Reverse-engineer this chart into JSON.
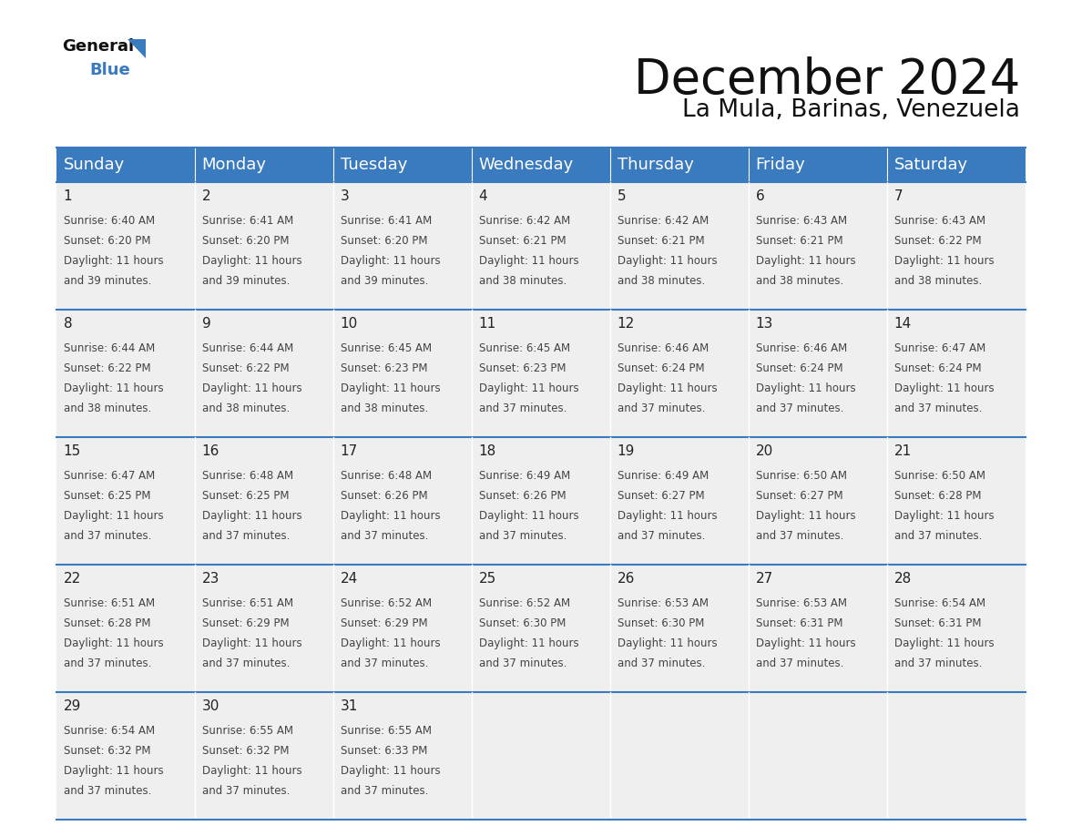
{
  "title": "December 2024",
  "subtitle": "La Mula, Barinas, Venezuela",
  "header_color": "#3a7abf",
  "header_text_color": "#ffffff",
  "cell_bg_color": "#efefef",
  "border_color": "#3a7abf",
  "days_of_week": [
    "Sunday",
    "Monday",
    "Tuesday",
    "Wednesday",
    "Thursday",
    "Friday",
    "Saturday"
  ],
  "title_fontsize": 38,
  "subtitle_fontsize": 19,
  "day_header_fontsize": 13,
  "cell_date_fontsize": 11,
  "cell_text_fontsize": 8.5,
  "logo_general_fontsize": 13,
  "logo_blue_fontsize": 13,
  "calendar_data": [
    [
      {
        "day": 1,
        "sunrise": "6:40 AM",
        "sunset": "6:20 PM",
        "daylight": "11 hours and 39 minutes"
      },
      {
        "day": 2,
        "sunrise": "6:41 AM",
        "sunset": "6:20 PM",
        "daylight": "11 hours and 39 minutes"
      },
      {
        "day": 3,
        "sunrise": "6:41 AM",
        "sunset": "6:20 PM",
        "daylight": "11 hours and 39 minutes"
      },
      {
        "day": 4,
        "sunrise": "6:42 AM",
        "sunset": "6:21 PM",
        "daylight": "11 hours and 38 minutes"
      },
      {
        "day": 5,
        "sunrise": "6:42 AM",
        "sunset": "6:21 PM",
        "daylight": "11 hours and 38 minutes"
      },
      {
        "day": 6,
        "sunrise": "6:43 AM",
        "sunset": "6:21 PM",
        "daylight": "11 hours and 38 minutes"
      },
      {
        "day": 7,
        "sunrise": "6:43 AM",
        "sunset": "6:22 PM",
        "daylight": "11 hours and 38 minutes"
      }
    ],
    [
      {
        "day": 8,
        "sunrise": "6:44 AM",
        "sunset": "6:22 PM",
        "daylight": "11 hours and 38 minutes"
      },
      {
        "day": 9,
        "sunrise": "6:44 AM",
        "sunset": "6:22 PM",
        "daylight": "11 hours and 38 minutes"
      },
      {
        "day": 10,
        "sunrise": "6:45 AM",
        "sunset": "6:23 PM",
        "daylight": "11 hours and 38 minutes"
      },
      {
        "day": 11,
        "sunrise": "6:45 AM",
        "sunset": "6:23 PM",
        "daylight": "11 hours and 37 minutes"
      },
      {
        "day": 12,
        "sunrise": "6:46 AM",
        "sunset": "6:24 PM",
        "daylight": "11 hours and 37 minutes"
      },
      {
        "day": 13,
        "sunrise": "6:46 AM",
        "sunset": "6:24 PM",
        "daylight": "11 hours and 37 minutes"
      },
      {
        "day": 14,
        "sunrise": "6:47 AM",
        "sunset": "6:24 PM",
        "daylight": "11 hours and 37 minutes"
      }
    ],
    [
      {
        "day": 15,
        "sunrise": "6:47 AM",
        "sunset": "6:25 PM",
        "daylight": "11 hours and 37 minutes"
      },
      {
        "day": 16,
        "sunrise": "6:48 AM",
        "sunset": "6:25 PM",
        "daylight": "11 hours and 37 minutes"
      },
      {
        "day": 17,
        "sunrise": "6:48 AM",
        "sunset": "6:26 PM",
        "daylight": "11 hours and 37 minutes"
      },
      {
        "day": 18,
        "sunrise": "6:49 AM",
        "sunset": "6:26 PM",
        "daylight": "11 hours and 37 minutes"
      },
      {
        "day": 19,
        "sunrise": "6:49 AM",
        "sunset": "6:27 PM",
        "daylight": "11 hours and 37 minutes"
      },
      {
        "day": 20,
        "sunrise": "6:50 AM",
        "sunset": "6:27 PM",
        "daylight": "11 hours and 37 minutes"
      },
      {
        "day": 21,
        "sunrise": "6:50 AM",
        "sunset": "6:28 PM",
        "daylight": "11 hours and 37 minutes"
      }
    ],
    [
      {
        "day": 22,
        "sunrise": "6:51 AM",
        "sunset": "6:28 PM",
        "daylight": "11 hours and 37 minutes"
      },
      {
        "day": 23,
        "sunrise": "6:51 AM",
        "sunset": "6:29 PM",
        "daylight": "11 hours and 37 minutes"
      },
      {
        "day": 24,
        "sunrise": "6:52 AM",
        "sunset": "6:29 PM",
        "daylight": "11 hours and 37 minutes"
      },
      {
        "day": 25,
        "sunrise": "6:52 AM",
        "sunset": "6:30 PM",
        "daylight": "11 hours and 37 minutes"
      },
      {
        "day": 26,
        "sunrise": "6:53 AM",
        "sunset": "6:30 PM",
        "daylight": "11 hours and 37 minutes"
      },
      {
        "day": 27,
        "sunrise": "6:53 AM",
        "sunset": "6:31 PM",
        "daylight": "11 hours and 37 minutes"
      },
      {
        "day": 28,
        "sunrise": "6:54 AM",
        "sunset": "6:31 PM",
        "daylight": "11 hours and 37 minutes"
      }
    ],
    [
      {
        "day": 29,
        "sunrise": "6:54 AM",
        "sunset": "6:32 PM",
        "daylight": "11 hours and 37 minutes"
      },
      {
        "day": 30,
        "sunrise": "6:55 AM",
        "sunset": "6:32 PM",
        "daylight": "11 hours and 37 minutes"
      },
      {
        "day": 31,
        "sunrise": "6:55 AM",
        "sunset": "6:33 PM",
        "daylight": "11 hours and 37 minutes"
      },
      null,
      null,
      null,
      null
    ]
  ]
}
